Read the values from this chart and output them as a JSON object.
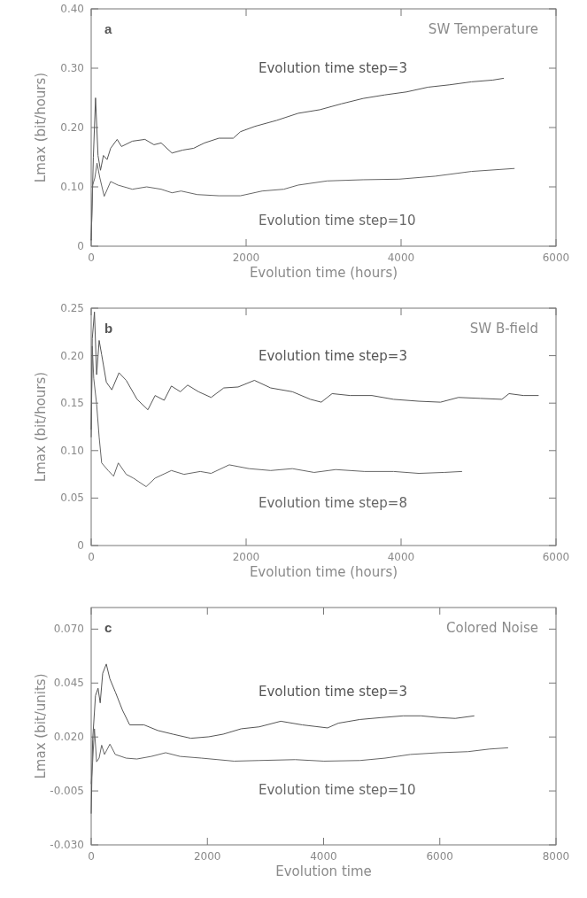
{
  "chart_data": [
    {
      "type": "line",
      "title": "SW Temperature",
      "annotations": [
        "a"
      ],
      "xlabel": "Evolution time (hours)",
      "ylabel": "Lmax (bit/hours)",
      "xlim": [
        0,
        6000
      ],
      "xticks": [
        0,
        2000,
        4000,
        6000
      ],
      "ylim": [
        0,
        0.4
      ],
      "yticks": [
        0,
        {
          "value": 0.1,
          "label": "0.10"
        },
        {
          "value": 0.2,
          "label": "0.20"
        },
        {
          "value": 0.3,
          "label": "0.30"
        },
        {
          "value": 0.4,
          "label": "0.40"
        }
      ],
      "grid": false,
      "marker": "none",
      "line_style": "solid",
      "series": [
        {
          "name": "Evolution time step=3",
          "color": "#555555",
          "x": [
            0,
            28,
            56,
            88,
            120,
            158,
            205,
            251,
            335,
            391,
            531,
            694,
            810,
            903,
            1043,
            1182,
            1322,
            1462,
            1648,
            1834,
            1927,
            2114,
            2393,
            2672,
            2952,
            3231,
            3510,
            3790,
            4069,
            4348,
            4627,
            4907,
            5186,
            5326
          ],
          "values": [
            0.01,
            0.15,
            0.25,
            0.153,
            0.128,
            0.153,
            0.146,
            0.165,
            0.18,
            0.168,
            0.177,
            0.18,
            0.171,
            0.174,
            0.157,
            0.162,
            0.165,
            0.174,
            0.182,
            0.182,
            0.193,
            0.202,
            0.212,
            0.224,
            0.23,
            0.24,
            0.249,
            0.255,
            0.26,
            0.268,
            0.272,
            0.277,
            0.28,
            0.283
          ]
        },
        {
          "name": "Evolution time step=10",
          "color": "#666666",
          "x": [
            0,
            19,
            47,
            75,
            112,
            168,
            251,
            345,
            531,
            717,
            903,
            1043,
            1160,
            1369,
            1648,
            1927,
            2207,
            2486,
            2672,
            3044,
            3510,
            3975,
            4440,
            4907,
            5465
          ],
          "values": [
            0.01,
            0.103,
            0.115,
            0.14,
            0.115,
            0.084,
            0.109,
            0.103,
            0.096,
            0.1,
            0.096,
            0.09,
            0.093,
            0.087,
            0.085,
            0.085,
            0.093,
            0.096,
            0.103,
            0.11,
            0.112,
            0.113,
            0.118,
            0.126,
            0.131
          ]
        }
      ]
    },
    {
      "type": "line",
      "title": "SW B-field",
      "annotations": [
        "b"
      ],
      "xlabel": "Evolution time (hours)",
      "ylabel": "Lmax (bit/hours)",
      "xlim": [
        0,
        6000
      ],
      "xticks": [
        0,
        2000,
        4000,
        6000
      ],
      "ylim": [
        0,
        0.25
      ],
      "yticks": [
        0,
        0.05,
        {
          "value": 0.1,
          "label": "0.10"
        },
        0.15,
        {
          "value": 0.2,
          "label": "0.20"
        },
        0.25
      ],
      "grid": false,
      "marker": "none",
      "line_style": "solid",
      "series": [
        {
          "name": "Evolution time step=3",
          "color": "#555555",
          "x": [
            0,
            14,
            42,
            70,
            103,
            135,
            196,
            266,
            359,
            452,
            592,
            732,
            825,
            942,
            1035,
            1151,
            1245,
            1385,
            1548,
            1711,
            1897,
            2107,
            2317,
            2597,
            2830,
            2970,
            3110,
            3343,
            3623,
            3903,
            4229,
            4509,
            4741,
            5021,
            5301,
            5394,
            5580,
            5776
          ],
          "values": [
            0.122,
            0.218,
            0.246,
            0.18,
            0.216,
            0.201,
            0.172,
            0.164,
            0.182,
            0.174,
            0.154,
            0.143,
            0.158,
            0.153,
            0.168,
            0.162,
            0.169,
            0.162,
            0.156,
            0.166,
            0.167,
            0.174,
            0.166,
            0.162,
            0.154,
            0.151,
            0.16,
            0.158,
            0.158,
            0.154,
            0.152,
            0.151,
            0.156,
            0.155,
            0.154,
            0.16,
            0.158,
            0.158
          ]
        },
        {
          "name": "Evolution time step=8",
          "color": "#666666",
          "x": [
            0,
            14,
            33,
            70,
            103,
            135,
            219,
            289,
            350,
            452,
            545,
            709,
            825,
            1035,
            1198,
            1408,
            1548,
            1781,
            2037,
            2317,
            2597,
            2877,
            3156,
            3529,
            3903,
            4229,
            4555,
            4788
          ],
          "values": [
            0.114,
            0.21,
            0.176,
            0.149,
            0.114,
            0.087,
            0.079,
            0.073,
            0.087,
            0.075,
            0.071,
            0.062,
            0.071,
            0.079,
            0.075,
            0.078,
            0.076,
            0.085,
            0.081,
            0.079,
            0.081,
            0.077,
            0.08,
            0.078,
            0.078,
            0.076,
            0.077,
            0.078
          ]
        }
      ]
    },
    {
      "type": "line",
      "title": "Colored Noise",
      "annotations": [
        "c"
      ],
      "xlabel": "Evolution time",
      "ylabel": "Lmax (bit/units)",
      "xlim": [
        0,
        8000
      ],
      "xticks": [
        0,
        2000,
        4000,
        6000,
        8000
      ],
      "ylim": [
        -0.03,
        0.08
      ],
      "yticks": [
        {
          "value": -0.03,
          "label": "-0.030"
        },
        {
          "value": -0.005,
          "label": "-0.005"
        },
        {
          "value": 0.02,
          "label": "0.020"
        },
        {
          "value": 0.045,
          "label": "0.045"
        },
        {
          "value": 0.07,
          "label": "0.070"
        }
      ],
      "grid": false,
      "marker": "none",
      "line_style": "solid",
      "series": [
        {
          "name": "Evolution time step=3",
          "color": "#555555",
          "x": [
            0,
            25,
            74,
            118,
            155,
            198,
            260,
            322,
            415,
            539,
            663,
            910,
            1146,
            1406,
            1715,
            2025,
            2272,
            2582,
            2892,
            3263,
            3635,
            4068,
            4254,
            4625,
            4997,
            5368,
            5678,
            5987,
            6266,
            6594
          ],
          "values": [
            -0.0155,
            0.0187,
            0.0392,
            0.0426,
            0.0358,
            0.0495,
            0.0538,
            0.0469,
            0.0409,
            0.0324,
            0.0256,
            0.0256,
            0.023,
            0.0213,
            0.0194,
            0.0201,
            0.0213,
            0.0238,
            0.0247,
            0.0273,
            0.0256,
            0.0242,
            0.0264,
            0.0281,
            0.029,
            0.0298,
            0.0298,
            0.029,
            0.0286,
            0.0298
          ]
        },
        {
          "name": "Evolution time step=10",
          "color": "#666666",
          "x": [
            0,
            25,
            56,
            93,
            136,
            180,
            229,
            322,
            415,
            601,
            786,
            1034,
            1282,
            1529,
            1901,
            2458,
            2892,
            3511,
            4006,
            4625,
            5059,
            5492,
            5987,
            6483,
            6854,
            7176
          ],
          "values": [
            -0.0018,
            0.0085,
            0.0238,
            0.0085,
            0.0102,
            0.0162,
            0.0119,
            0.0167,
            0.0119,
            0.0102,
            0.0098,
            0.011,
            0.0127,
            0.011,
            0.0102,
            0.0088,
            0.0091,
            0.0095,
            0.0088,
            0.0091,
            0.0102,
            0.0119,
            0.0127,
            0.0132,
            0.0144,
            0.015
          ]
        }
      ]
    }
  ]
}
